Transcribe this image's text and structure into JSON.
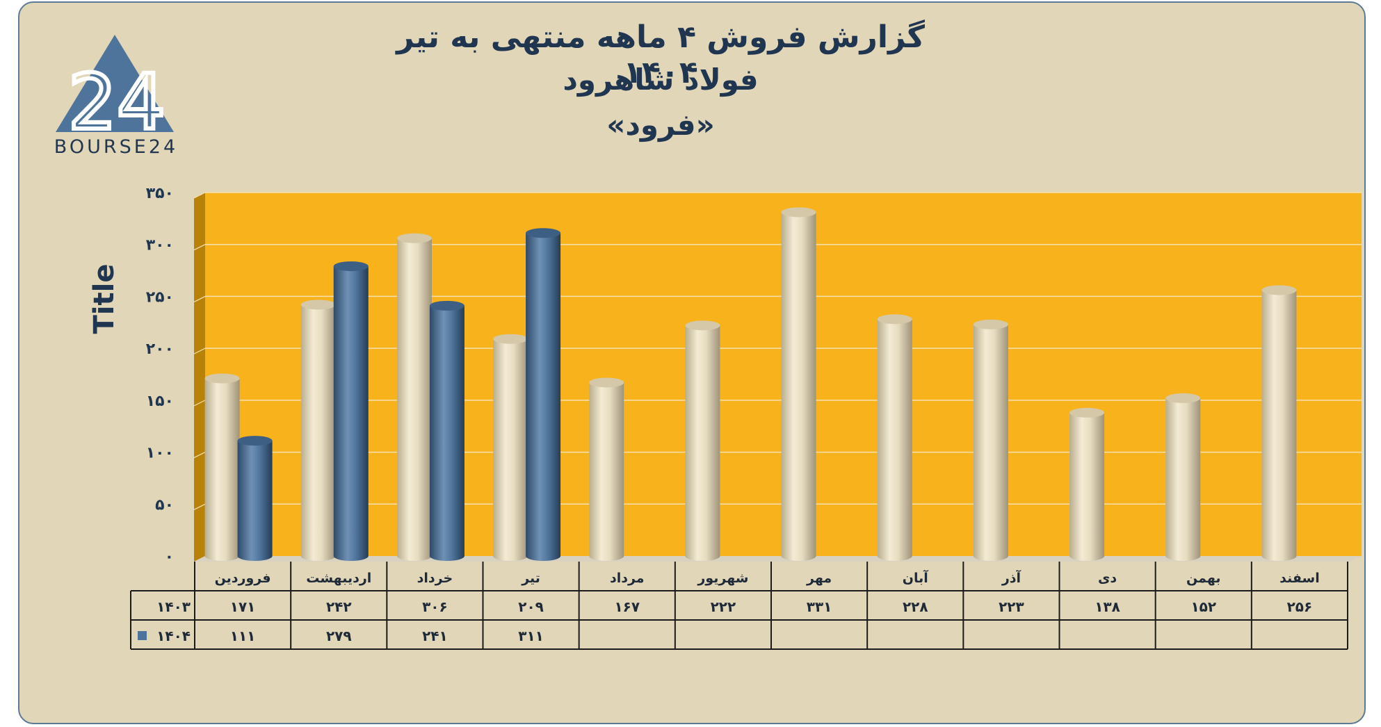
{
  "header": {
    "title_line1": "گزارش  فروش ۴ ماهه منتهی به تیر ۱۴۰۴",
    "title_line2": "فولاد شاهرود",
    "title_line3": "«فرود»",
    "logo_text": "BOURSE24",
    "logo_mark": "24"
  },
  "colors": {
    "background": "#e2d6b8",
    "plot_area": "#f7b21c",
    "series_1403": "#e6dcc0",
    "series_1404": "#4f749c",
    "title": "#1f3550"
  },
  "chart_data": {
    "type": "bar",
    "ylabel": "Title",
    "ylim": [
      0,
      350
    ],
    "yticks": [
      "۰",
      "۵۰",
      "۱۰۰",
      "۱۵۰",
      "۲۰۰",
      "۲۵۰",
      "۳۰۰",
      "۳۵۰"
    ],
    "grid": true,
    "categories": [
      "فروردین",
      "اردیبهشت",
      "خرداد",
      "تیر",
      "مرداد",
      "شهریور",
      "مهر",
      "آبان",
      "آذر",
      "دی",
      "بهمن",
      "اسفند"
    ],
    "series": [
      {
        "name": "۱۴۰۳",
        "values": [
          171,
          242,
          306,
          209,
          167,
          222,
          331,
          228,
          223,
          138,
          152,
          256
        ],
        "labels": [
          "۱۷۱",
          "۲۴۲",
          "۳۰۶",
          "۲۰۹",
          "۱۶۷",
          "۲۲۲",
          "۳۳۱",
          "۲۲۸",
          "۲۲۳",
          "۱۳۸",
          "۱۵۲",
          "۲۵۶"
        ]
      },
      {
        "name": "۱۴۰۴",
        "values": [
          111,
          279,
          241,
          311,
          null,
          null,
          null,
          null,
          null,
          null,
          null,
          null
        ],
        "labels": [
          "۱۱۱",
          "۲۷۹",
          "۲۴۱",
          "۳۱۱",
          "",
          "",
          "",
          "",
          "",
          "",
          "",
          ""
        ]
      }
    ],
    "legend": "data-table"
  }
}
